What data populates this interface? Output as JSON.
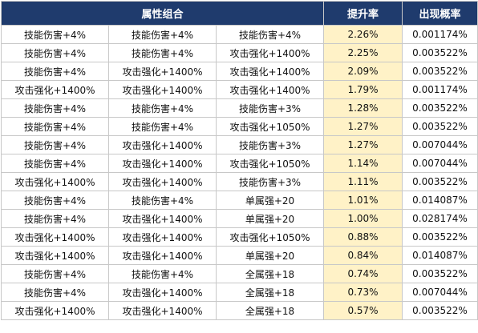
{
  "header": {
    "combo": "属性组合",
    "rate": "提升率",
    "prob": "出现概率"
  },
  "rows": [
    {
      "a": "技能伤害+4%",
      "b": "技能伤害+4%",
      "c": "技能伤害+4%",
      "rate": "2.26%",
      "prob": "0.001174%"
    },
    {
      "a": "技能伤害+4%",
      "b": "技能伤害+4%",
      "c": "攻击强化+1400%",
      "rate": "2.25%",
      "prob": "0.003522%"
    },
    {
      "a": "技能伤害+4%",
      "b": "攻击强化+1400%",
      "c": "攻击强化+1400%",
      "rate": "2.09%",
      "prob": "0.003522%"
    },
    {
      "a": "攻击强化+1400%",
      "b": "攻击强化+1400%",
      "c": "攻击强化+1400%",
      "rate": "1.79%",
      "prob": "0.001174%"
    },
    {
      "a": "技能伤害+4%",
      "b": "技能伤害+4%",
      "c": "技能伤害+3%",
      "rate": "1.28%",
      "prob": "0.003522%"
    },
    {
      "a": "技能伤害+4%",
      "b": "技能伤害+4%",
      "c": "攻击强化+1050%",
      "rate": "1.27%",
      "prob": "0.003522%"
    },
    {
      "a": "技能伤害+4%",
      "b": "攻击强化+1400%",
      "c": "技能伤害+3%",
      "rate": "1.27%",
      "prob": "0.007044%"
    },
    {
      "a": "技能伤害+4%",
      "b": "攻击强化+1400%",
      "c": "攻击强化+1050%",
      "rate": "1.14%",
      "prob": "0.007044%"
    },
    {
      "a": "攻击强化+1400%",
      "b": "攻击强化+1400%",
      "c": "技能伤害+3%",
      "rate": "1.11%",
      "prob": "0.003522%"
    },
    {
      "a": "技能伤害+4%",
      "b": "技能伤害+4%",
      "c": "单属强+20",
      "rate": "1.01%",
      "prob": "0.014087%"
    },
    {
      "a": "技能伤害+4%",
      "b": "攻击强化+1400%",
      "c": "单属强+20",
      "rate": "1.00%",
      "prob": "0.028174%"
    },
    {
      "a": "攻击强化+1400%",
      "b": "攻击强化+1400%",
      "c": "攻击强化+1050%",
      "rate": "0.88%",
      "prob": "0.003522%"
    },
    {
      "a": "攻击强化+1400%",
      "b": "攻击强化+1400%",
      "c": "单属强+20",
      "rate": "0.84%",
      "prob": "0.014087%"
    },
    {
      "a": "技能伤害+4%",
      "b": "技能伤害+4%",
      "c": "全属强+18",
      "rate": "0.74%",
      "prob": "0.003522%"
    },
    {
      "a": "技能伤害+4%",
      "b": "攻击强化+1400%",
      "c": "全属强+18",
      "rate": "0.73%",
      "prob": "0.007044%"
    },
    {
      "a": "攻击强化+1400%",
      "b": "攻击强化+1400%",
      "c": "全属强+18",
      "rate": "0.57%",
      "prob": "0.003522%"
    }
  ]
}
